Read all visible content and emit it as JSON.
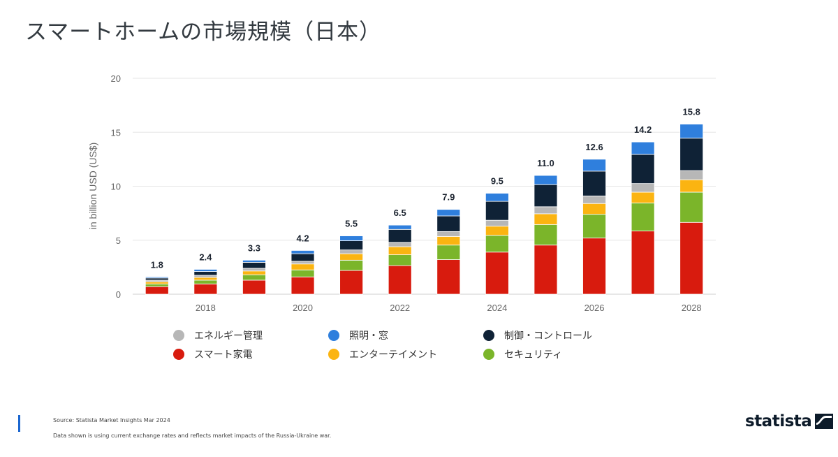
{
  "title": "スマートホームの市場規模（日本）",
  "chart_data": {
    "type": "bar",
    "stacked": true,
    "ylabel": "in billion USD (US$)",
    "ylim": [
      0,
      20
    ],
    "yticks": [
      0,
      5,
      10,
      15,
      20
    ],
    "x": [
      2017,
      2018,
      2019,
      2020,
      2021,
      2022,
      2023,
      2024,
      2025,
      2026,
      2027,
      2028
    ],
    "xtick_labels": [
      "2018",
      "2020",
      "2022",
      "2024",
      "2026",
      "2028"
    ],
    "grid": true,
    "legend_position": "bottom",
    "totals": [
      "1.8",
      "2.4",
      "3.3",
      "4.2",
      "5.5",
      "6.5",
      "7.9",
      "9.5",
      "11.0",
      "12.6",
      "14.2",
      "15.8"
    ],
    "series": [
      {
        "name": "スマート家電",
        "color": "#d81b0e",
        "values": [
          0.7,
          0.95,
          1.3,
          1.6,
          2.2,
          2.65,
          3.2,
          3.9,
          4.55,
          5.2,
          5.85,
          6.65
        ]
      },
      {
        "name": "セキュリティ",
        "color": "#7bb52a",
        "values": [
          0.25,
          0.35,
          0.5,
          0.65,
          0.95,
          1.0,
          1.35,
          1.55,
          1.9,
          2.2,
          2.6,
          2.8
        ]
      },
      {
        "name": "エンターテイメント",
        "color": "#fbb411",
        "values": [
          0.2,
          0.25,
          0.35,
          0.55,
          0.6,
          0.75,
          0.8,
          0.85,
          1.0,
          1.0,
          1.0,
          1.15
        ]
      },
      {
        "name": "エネルギー管理",
        "color": "#b7b7b7",
        "values": [
          0.15,
          0.2,
          0.25,
          0.25,
          0.35,
          0.4,
          0.45,
          0.55,
          0.65,
          0.7,
          0.8,
          0.85
        ]
      },
      {
        "name": "制御・コントロール",
        "color": "#0f2236",
        "values": [
          0.2,
          0.35,
          0.55,
          0.7,
          0.85,
          1.2,
          1.45,
          1.75,
          2.05,
          2.3,
          2.7,
          3.0
        ]
      },
      {
        "name": "照明・窓",
        "color": "#2f7fdd",
        "values": [
          0.1,
          0.2,
          0.2,
          0.3,
          0.45,
          0.4,
          0.6,
          0.75,
          0.85,
          1.1,
          1.15,
          1.3
        ]
      }
    ]
  },
  "legend": {
    "items": [
      {
        "label": "エネルギー管理",
        "color": "#b7b7b7"
      },
      {
        "label": "照明・窓",
        "color": "#2f7fdd"
      },
      {
        "label": "制御・コントロール",
        "color": "#0f2236"
      },
      {
        "label": "スマート家電",
        "color": "#d81b0e"
      },
      {
        "label": "エンターテイメント",
        "color": "#fbb411"
      },
      {
        "label": "セキュリティ",
        "color": "#7bb52a"
      }
    ]
  },
  "footer": {
    "source": "Source: Statista Market Insights Mar 2024",
    "note": "Data shown is using current exchange rates and reflects market impacts of the Russia-Ukraine war.",
    "brand": "statista",
    "brand_color": "#0d1b2a",
    "accent_color": "#1a66d0"
  }
}
